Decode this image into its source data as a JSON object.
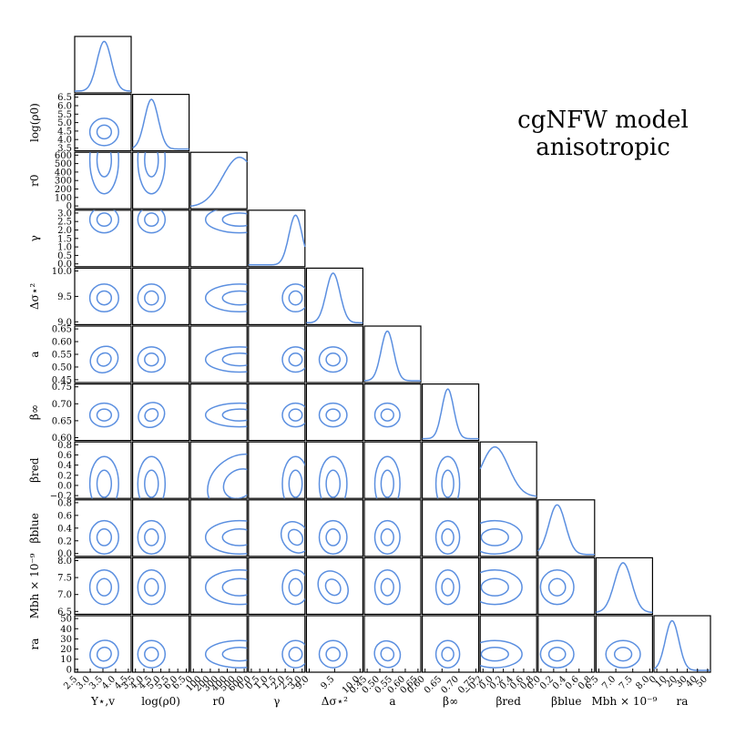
{
  "title": {
    "line1": "cgNFW model",
    "line2": "anisotropic"
  },
  "chart_data": {
    "type": "corner",
    "line_color": "#5b8fe0",
    "parameters": [
      {
        "key": "upsilon",
        "label": "Υ⋆,v",
        "range": [
          2.4,
          4.6
        ],
        "ticks": [
          "2.5",
          "3.0",
          "3.5",
          "4.0",
          "4.5"
        ],
        "peak": 3.55,
        "sigma": 0.28
      },
      {
        "key": "logrho0",
        "label": "log(ρ0)",
        "range": [
          3.5,
          6.8
        ],
        "ticks": [
          "3.5",
          "4.0",
          "4.5",
          "5.0",
          "5.5",
          "6.0",
          "6.5"
        ],
        "peak": 4.6,
        "sigma": 0.4
      },
      {
        "key": "r0",
        "label": "r0",
        "range": [
          0,
          600
        ],
        "ticks": [
          "0",
          "100",
          "200",
          "300",
          "400",
          "500",
          "600"
        ],
        "peak": 520,
        "sigma": 180
      },
      {
        "key": "gamma",
        "label": "γ",
        "range": [
          0,
          3
        ],
        "ticks": [
          "0.0",
          "0.5",
          "1.0",
          "1.5",
          "2.0",
          "2.5",
          "3.0"
        ],
        "peak": 2.5,
        "sigma": 0.35
      },
      {
        "key": "delta_sigma2",
        "label": "Δσ⋆²",
        "range": [
          8.6,
          10.4
        ],
        "ticks": [
          "9.0",
          "9.5",
          "10.0"
        ],
        "peak": 9.45,
        "sigma": 0.22
      },
      {
        "key": "a",
        "label": "a",
        "range": [
          0.41,
          0.68
        ],
        "ticks": [
          "0.45",
          "0.50",
          "0.55",
          "0.60",
          "0.65"
        ],
        "peak": 0.52,
        "sigma": 0.03
      },
      {
        "key": "beta_inf",
        "label": "β∞",
        "range": [
          0.57,
          0.78
        ],
        "ticks": [
          "0.60",
          "0.65",
          "0.70",
          "0.75"
        ],
        "peak": 0.665,
        "sigma": 0.022
      },
      {
        "key": "beta_red",
        "label": "βred",
        "range": [
          -0.22,
          0.82
        ],
        "ticks": [
          "−0.2",
          "0.0",
          "0.2",
          "0.4",
          "0.6",
          "0.8"
        ],
        "peak": 0.05,
        "sigma": 0.25
      },
      {
        "key": "beta_blue",
        "label": "βblue",
        "range": [
          -0.1,
          0.85
        ],
        "ticks": [
          "0.0",
          "0.2",
          "0.4",
          "0.6",
          "0.8"
        ],
        "peak": 0.22,
        "sigma": 0.14
      },
      {
        "key": "mbh",
        "label": "Mbh × 10⁻⁹",
        "range": [
          6.1,
          8.4
        ],
        "ticks": [
          "6.5",
          "7.0",
          "7.5",
          "8.0"
        ],
        "peak": 7.2,
        "sigma": 0.35
      },
      {
        "key": "ra",
        "label": "ra",
        "range": [
          0,
          50
        ],
        "ticks": [
          "0",
          "10",
          "20",
          "30",
          "40",
          "50"
        ],
        "peak": 16,
        "sigma": 6
      }
    ]
  }
}
